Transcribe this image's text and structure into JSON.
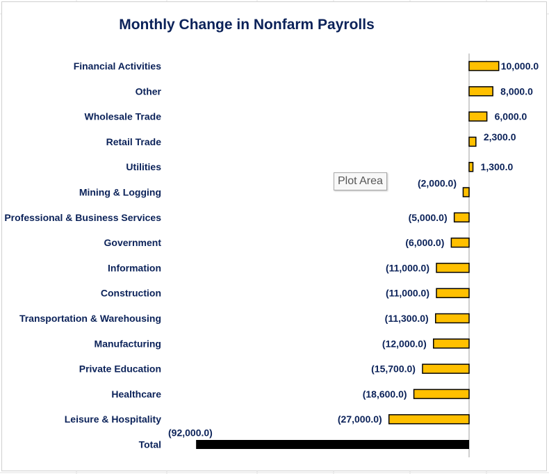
{
  "chart_data": {
    "type": "bar",
    "orientation": "horizontal",
    "title": "Monthly Change in Nonfarm Payrolls",
    "categories": [
      "Financial Activities",
      "Other",
      "Wholesale Trade",
      "Retail Trade",
      "Utilities",
      "Mining & Logging",
      "Professional & Business Services",
      "Government",
      "Information",
      "Construction",
      "Transportation & Warehousing",
      "Manufacturing",
      "Private Education",
      "Healthcare",
      "Leisure & Hospitality",
      "Total"
    ],
    "values": [
      10000,
      8000,
      6000,
      2300,
      1300,
      -2000,
      -5000,
      -6000,
      -11000,
      -11000,
      -11300,
      -12000,
      -15700,
      -18600,
      -27000,
      -92000
    ],
    "data_labels": [
      "10,000.0",
      "8,000.0",
      "6,000.0",
      "2,300.0",
      "1,300.0",
      "(2,000.0)",
      "(5,000.0)",
      "(6,000.0)",
      "(11,000.0)",
      "(11,000.0)",
      "(11,300.0)",
      "(12,000.0)",
      "(15,700.0)",
      "(18,600.0)",
      "(27,000.0)",
      "(92,000.0)"
    ],
    "xlim": [
      -92000,
      10000
    ],
    "xlabel": "",
    "ylabel": "",
    "grid": false,
    "legend": "none",
    "colors": {
      "bar": "#ffc000",
      "total_bar": "#000000",
      "bar_edge": "#000000",
      "text": "#0b2259",
      "axis": "#bfbfbf"
    }
  },
  "tooltip": {
    "text": "Plot Area"
  }
}
